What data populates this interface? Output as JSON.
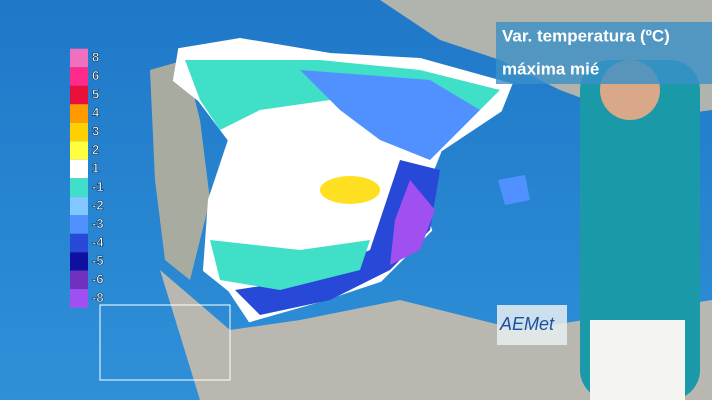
{
  "header": {
    "title": "Var. temperatura (ºC)",
    "subtitle": "máxima mié"
  },
  "legend": [
    {
      "label": "8",
      "color": "#f070c0"
    },
    {
      "label": "6",
      "color": "#ff2a8a"
    },
    {
      "label": "5",
      "color": "#e8103a"
    },
    {
      "label": "4",
      "color": "#ff9a00"
    },
    {
      "label": "3",
      "color": "#ffd000"
    },
    {
      "label": "2",
      "color": "#ffff40"
    },
    {
      "label": "1",
      "color": "#ffffff"
    },
    {
      "label": "-1",
      "color": "#40e0c8"
    },
    {
      "label": "-2",
      "color": "#80c8ff"
    },
    {
      "label": "-3",
      "color": "#5090ff"
    },
    {
      "label": "-4",
      "color": "#2848d8"
    },
    {
      "label": "-5",
      "color": "#1010a0"
    },
    {
      "label": "-6",
      "color": "#7030c0"
    },
    {
      "label": "-8",
      "color": "#a050f0"
    }
  ],
  "logo": "AEMet"
}
